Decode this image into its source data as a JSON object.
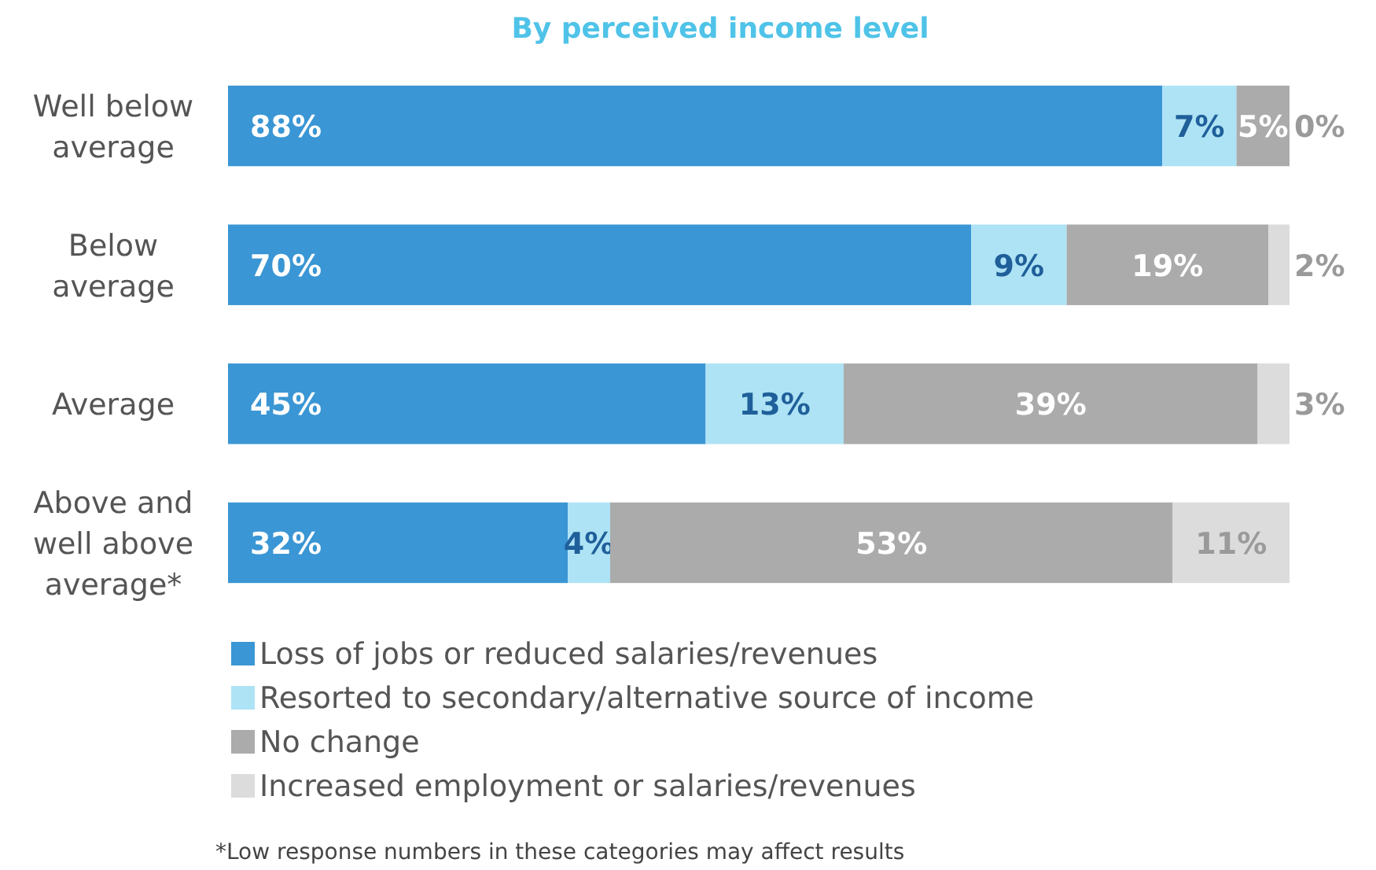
{
  "chart_data": {
    "type": "bar",
    "orientation": "horizontal",
    "stacked": true,
    "title": "By perceived income level",
    "categories": [
      "Well below average",
      "Below average",
      "Average",
      "Above and well above average*"
    ],
    "series": [
      {
        "name": "Loss of jobs or reduced salaries/revenues",
        "color": "#3a96d4",
        "values": [
          88,
          70,
          45,
          32
        ],
        "value_labels": [
          "88%",
          "70%",
          "45%",
          "32%"
        ]
      },
      {
        "name": "Resorted to secondary/alternative source of income",
        "color": "#aee3f5",
        "values": [
          7,
          9,
          13,
          4
        ],
        "value_labels": [
          "7%",
          "9%",
          "13%",
          "4%"
        ]
      },
      {
        "name": "No change",
        "color": "#ababab",
        "values": [
          5,
          19,
          39,
          53
        ],
        "value_labels": [
          "5%",
          "19%",
          "39%",
          "53%"
        ]
      },
      {
        "name": "Increased employment or salaries/revenues",
        "color": "#dcdcdc",
        "values": [
          0,
          2,
          3,
          11
        ],
        "value_labels": [
          "0%",
          "2%",
          "3%",
          "11%"
        ]
      }
    ],
    "legend": "bottom",
    "annotations": [
      "*Low response numbers in these categories may affect results"
    ]
  }
}
